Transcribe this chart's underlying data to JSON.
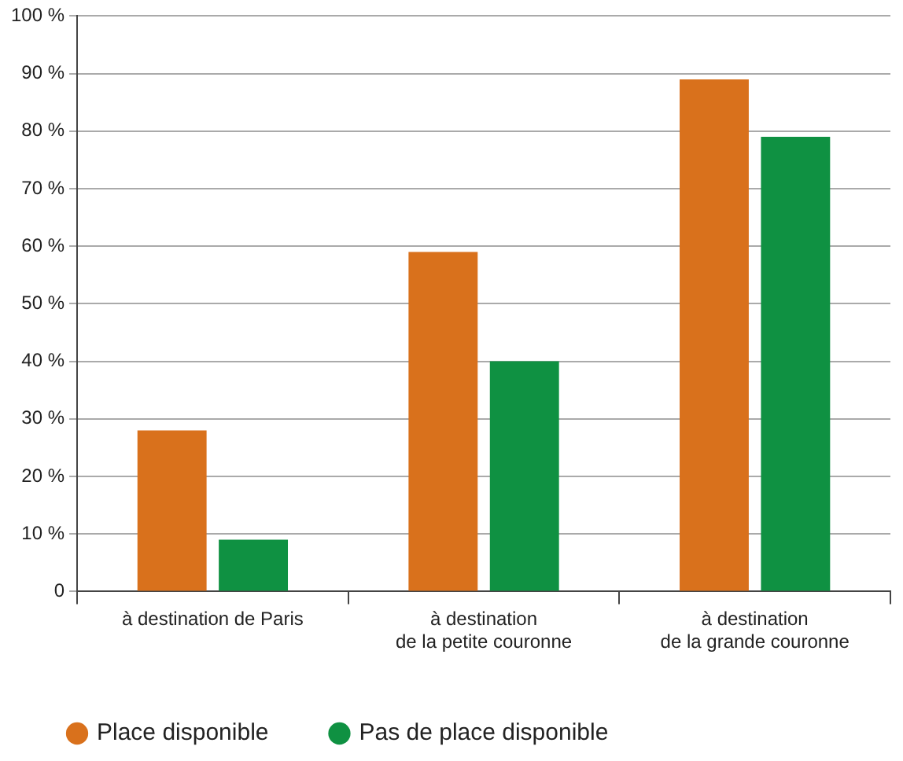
{
  "chart_data": {
    "type": "bar",
    "categories": [
      "à destination de Paris",
      "à destination\nde la petite couronne",
      "à destination\nde la grande couronne"
    ],
    "series": [
      {
        "name": "Place disponible",
        "color": "#d9711c",
        "values": [
          28,
          59,
          89
        ]
      },
      {
        "name": "Pas de place disponible",
        "color": "#0f9142",
        "values": [
          9,
          40,
          79
        ]
      }
    ],
    "ylim": [
      0,
      100
    ],
    "yticks": [
      0,
      {
        "value": 10,
        "label": "10 %"
      },
      {
        "value": 20,
        "label": "20 %"
      },
      {
        "value": 30,
        "label": "30 %"
      },
      {
        "value": 40,
        "label": "40 %"
      },
      {
        "value": 50,
        "label": "50 %"
      },
      {
        "value": 60,
        "label": "60 %"
      },
      {
        "value": 70,
        "label": "70 %"
      },
      {
        "value": 80,
        "label": "80 %"
      },
      {
        "value": 90,
        "label": "90 %"
      },
      {
        "value": 100,
        "label": "100 %"
      }
    ],
    "grid": "y",
    "legend": "bottom"
  }
}
